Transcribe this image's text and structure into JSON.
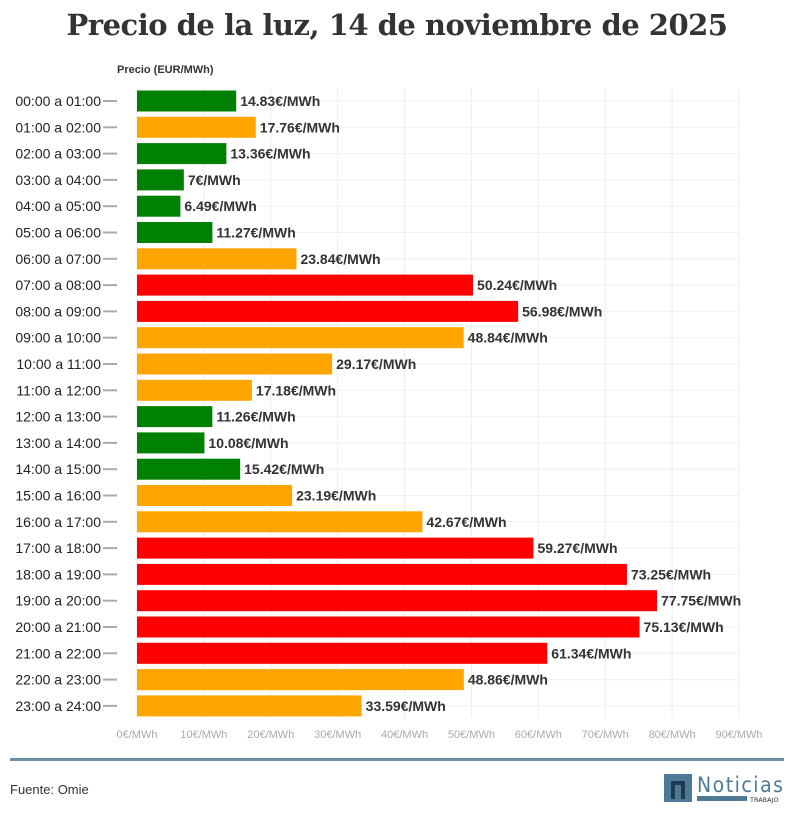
{
  "chart_data": {
    "type": "bar",
    "orientation": "horizontal",
    "title": "Precio de la luz, 14 de noviembre de 2025",
    "ylabel": "Precio (EUR/MWh)",
    "xlim": [
      0,
      90
    ],
    "xticks": [
      "0€/MWh",
      "10€/MWh",
      "20€/MWh",
      "30€/MWh",
      "40€/MWh",
      "50€/MWh",
      "60€/MWh",
      "70€/MWh",
      "80€/MWh",
      "90€/MWh"
    ],
    "grid": true,
    "colors": {
      "low": "#008000",
      "mid": "#FFA500",
      "high": "#FF0000"
    },
    "categories": [
      "00:00 a 01:00",
      "01:00 a 02:00",
      "02:00 a 03:00",
      "03:00 a 04:00",
      "04:00 a 05:00",
      "05:00 a 06:00",
      "06:00 a 07:00",
      "07:00 a 08:00",
      "08:00 a 09:00",
      "09:00 a 10:00",
      "10:00 a 11:00",
      "11:00 a 12:00",
      "12:00 a 13:00",
      "13:00 a 14:00",
      "14:00 a 15:00",
      "15:00 a 16:00",
      "16:00 a 17:00",
      "17:00 a 18:00",
      "18:00 a 19:00",
      "19:00 a 20:00",
      "20:00 a 21:00",
      "21:00 a 22:00",
      "22:00 a 23:00",
      "23:00 a 24:00"
    ],
    "values": [
      14.83,
      17.76,
      13.36,
      7,
      6.49,
      11.27,
      23.84,
      50.24,
      56.98,
      48.84,
      29.17,
      17.18,
      11.26,
      10.08,
      15.42,
      23.19,
      42.67,
      59.27,
      73.25,
      77.75,
      75.13,
      61.34,
      48.86,
      33.59
    ],
    "levels": [
      "low",
      "mid",
      "low",
      "low",
      "low",
      "low",
      "mid",
      "high",
      "high",
      "mid",
      "mid",
      "mid",
      "low",
      "low",
      "low",
      "mid",
      "mid",
      "high",
      "high",
      "high",
      "high",
      "high",
      "mid",
      "mid"
    ],
    "data_labels": [
      "14.83€/MWh",
      "17.76€/MWh",
      "13.36€/MWh",
      "7€/MWh",
      "6.49€/MWh",
      "11.27€/MWh",
      "23.84€/MWh",
      "50.24€/MWh",
      "56.98€/MWh",
      "48.84€/MWh",
      "29.17€/MWh",
      "17.18€/MWh",
      "11.26€/MWh",
      "10.08€/MWh",
      "15.42€/MWh",
      "23.19€/MWh",
      "42.67€/MWh",
      "59.27€/MWh",
      "73.25€/MWh",
      "77.75€/MWh",
      "75.13€/MWh",
      "61.34€/MWh",
      "48.86€/MWh",
      "33.59€/MWh"
    ]
  },
  "footer": {
    "source": "Fuente: Omie",
    "logo_text": "Noticias",
    "logo_subtext": "TRABAJO"
  }
}
